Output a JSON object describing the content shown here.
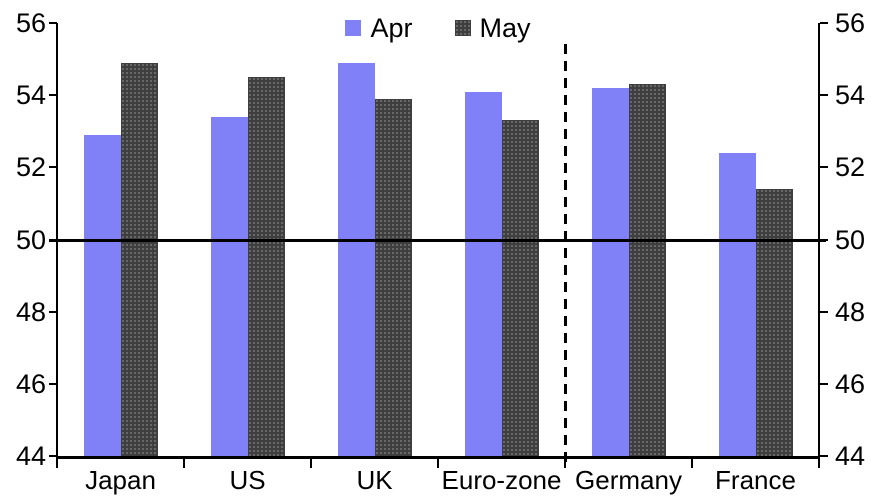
{
  "chart_data": {
    "type": "bar",
    "title": "",
    "xlabel": "",
    "ylabel": "",
    "categories": [
      "Japan",
      "US",
      "UK",
      "Euro-zone",
      "Germany",
      "France"
    ],
    "series": [
      {
        "name": "Apr",
        "color": "#8181F7",
        "pattern": "solid",
        "values": [
          52.9,
          53.4,
          54.9,
          54.1,
          54.2,
          52.4
        ]
      },
      {
        "name": "May",
        "color": "#3E3E3E",
        "pattern": "dotted",
        "values": [
          54.9,
          54.5,
          53.9,
          53.3,
          54.3,
          51.4
        ]
      }
    ],
    "ylim": [
      44,
      56
    ],
    "yticks": [
      44,
      46,
      48,
      50,
      52,
      54,
      56
    ],
    "y_axis_sides": [
      "left",
      "right"
    ],
    "benchmark_line": 50,
    "separator_after_category": "Euro-zone",
    "legend_position": "top-center",
    "grid": false,
    "colors": {
      "apr_bar": "#8181F7",
      "may_bar_base": "#3E3E3E",
      "axis": "#000000",
      "background": "#FFFFFF"
    }
  }
}
